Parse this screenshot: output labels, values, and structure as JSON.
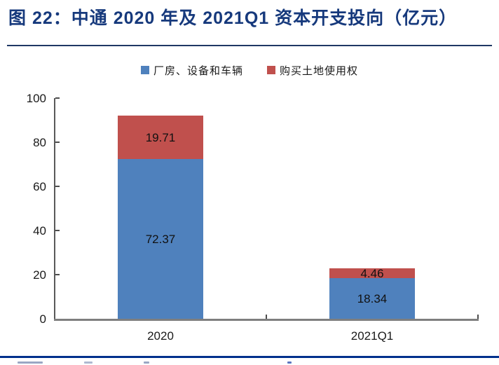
{
  "figure_title": "图 22：中通 2020 年及 2021Q1 资本开支投向（亿元）",
  "legend": [
    {
      "label": "厂房、设备和车辆",
      "color": "#4F81BD"
    },
    {
      "label": "购买土地使用权",
      "color": "#C0504D"
    }
  ],
  "chart_data": {
    "type": "bar",
    "stacked": true,
    "title": "图 22：中通 2020 年及 2021Q1 资本开支投向（亿元）",
    "categories": [
      "2020",
      "2021Q1"
    ],
    "series": [
      {
        "name": "厂房、设备和车辆",
        "color": "#4F81BD",
        "values": [
          72.37,
          18.34
        ]
      },
      {
        "name": "购买土地使用权",
        "color": "#C0504D",
        "values": [
          19.71,
          4.46
        ]
      }
    ],
    "data_labels": [
      [
        "72.37",
        "18.34"
      ],
      [
        "19.71",
        "4.46"
      ]
    ],
    "ylim": [
      0,
      100
    ],
    "yticks": [
      0,
      20,
      40,
      60,
      80,
      100
    ],
    "xlabel": "",
    "ylabel": "",
    "grid": false,
    "legend_position": "top"
  },
  "colors": {
    "title_navy": "#16397C",
    "header_rule": "#1F3864",
    "bottom_rule": "#00308C",
    "axis": "#595959",
    "x_axis": "#7F7F7F",
    "bar_blue": "#4F81BD",
    "bar_red": "#C0504D"
  }
}
